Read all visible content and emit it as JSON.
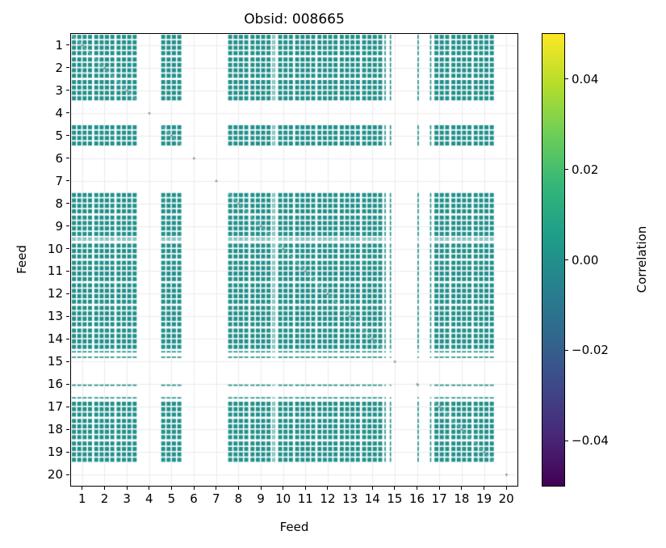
{
  "chart_data": {
    "type": "heatmap",
    "title": "Obsid: 008665",
    "xlabel": "Feed",
    "ylabel": "Feed",
    "colorbar_label": "Correlation",
    "vmin": -0.05,
    "vmax": 0.05,
    "n_feeds": 20,
    "x_tick_labels": [
      "1",
      "2",
      "3",
      "4",
      "5",
      "6",
      "7",
      "8",
      "9",
      "10",
      "11",
      "12",
      "13",
      "14",
      "15",
      "16",
      "17",
      "18",
      "19",
      "20"
    ],
    "y_tick_labels": [
      "1",
      "2",
      "3",
      "4",
      "5",
      "6",
      "7",
      "8",
      "9",
      "10",
      "11",
      "12",
      "13",
      "14",
      "15",
      "16",
      "17",
      "18",
      "19",
      "20"
    ],
    "colorbar_ticks": [
      {
        "label": "0.04",
        "value": 0.04
      },
      {
        "label": "0.02",
        "value": 0.02
      },
      {
        "label": "0.00",
        "value": 0.0
      },
      {
        "label": "−0.02",
        "value": -0.02
      },
      {
        "label": "−0.04",
        "value": -0.04
      }
    ],
    "cell_value": 0.0,
    "cell_color": "#21918c",
    "grid_color": "#ebebeb",
    "diag_mark_color": "#777777",
    "viridis_stops": [
      "#440154",
      "#482878",
      "#3e4989",
      "#31688e",
      "#26828e",
      "#1f9e89",
      "#35b779",
      "#6ece58",
      "#b5de2b",
      "#fde725"
    ],
    "feed_intervals": [
      [
        [
          0.04,
          0.22
        ],
        [
          0.28,
          0.46
        ],
        [
          0.52,
          0.7
        ],
        [
          0.76,
          0.94
        ]
      ],
      [
        [
          0.04,
          0.22
        ],
        [
          0.28,
          0.46
        ],
        [
          0.52,
          0.7
        ],
        [
          0.76,
          0.94
        ]
      ],
      [
        [
          0.04,
          0.22
        ],
        [
          0.28,
          0.46
        ],
        [
          0.52,
          0.7
        ],
        [
          0.76,
          0.94
        ]
      ],
      [],
      [
        [
          0.04,
          0.22
        ],
        [
          0.28,
          0.46
        ],
        [
          0.52,
          0.7
        ],
        [
          0.76,
          0.94
        ]
      ],
      [],
      [],
      [
        [
          0.04,
          0.22
        ],
        [
          0.28,
          0.46
        ],
        [
          0.52,
          0.7
        ],
        [
          0.76,
          0.94
        ]
      ],
      [
        [
          0.04,
          0.22
        ],
        [
          0.28,
          0.46
        ],
        [
          0.52,
          0.7
        ],
        [
          0.76,
          0.94
        ]
      ],
      [
        [
          0.02,
          0.06
        ],
        [
          0.1,
          0.14
        ],
        [
          0.28,
          0.46
        ],
        [
          0.52,
          0.7
        ],
        [
          0.76,
          0.94
        ]
      ],
      [
        [
          0.04,
          0.22
        ],
        [
          0.28,
          0.46
        ],
        [
          0.52,
          0.7
        ],
        [
          0.76,
          0.94
        ]
      ],
      [
        [
          0.04,
          0.22
        ],
        [
          0.28,
          0.46
        ],
        [
          0.52,
          0.7
        ],
        [
          0.76,
          0.94
        ]
      ],
      [
        [
          0.04,
          0.22
        ],
        [
          0.28,
          0.46
        ],
        [
          0.52,
          0.7
        ],
        [
          0.76,
          0.94
        ]
      ],
      [
        [
          0.04,
          0.22
        ],
        [
          0.28,
          0.46
        ],
        [
          0.52,
          0.7
        ],
        [
          0.76,
          0.94
        ]
      ],
      [
        [
          0.04,
          0.1
        ],
        [
          0.28,
          0.34
        ]
      ],
      [
        [
          0.52,
          0.58
        ]
      ],
      [
        [
          0.08,
          0.14
        ],
        [
          0.28,
          0.46
        ],
        [
          0.52,
          0.7
        ],
        [
          0.76,
          0.94
        ]
      ],
      [
        [
          0.04,
          0.22
        ],
        [
          0.28,
          0.46
        ],
        [
          0.52,
          0.7
        ],
        [
          0.76,
          0.94
        ]
      ],
      [
        [
          0.04,
          0.22
        ],
        [
          0.28,
          0.46
        ],
        [
          0.52,
          0.7
        ],
        [
          0.76,
          0.94
        ]
      ],
      []
    ]
  }
}
